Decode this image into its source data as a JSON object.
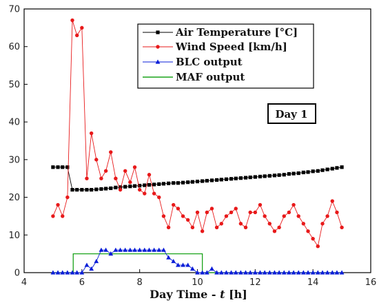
{
  "chart_data": {
    "type": "line",
    "xlabel_prefix": "Day Time - ",
    "xlabel_var": "t",
    "xlabel_suffix": " [h]",
    "ylabel": "",
    "xlim": [
      4,
      16
    ],
    "ylim": [
      0,
      70
    ],
    "xticks": [
      4,
      6,
      8,
      10,
      12,
      14,
      16
    ],
    "yticks": [
      0,
      10,
      20,
      30,
      40,
      50,
      60,
      70
    ],
    "annotation": "Day 1",
    "legend_position": "top-right",
    "series": [
      {
        "name": "Air Temperature [°C]",
        "color": "#000000",
        "marker": "square",
        "x": [
          5.0,
          5.17,
          5.33,
          5.5,
          5.67,
          5.83,
          6.0,
          6.17,
          6.33,
          6.5,
          6.67,
          6.83,
          7.0,
          7.17,
          7.33,
          7.5,
          7.67,
          7.83,
          8.0,
          8.17,
          8.33,
          8.5,
          8.67,
          8.83,
          9.0,
          9.17,
          9.33,
          9.5,
          9.67,
          9.83,
          10.0,
          10.17,
          10.33,
          10.5,
          10.67,
          10.83,
          11.0,
          11.17,
          11.33,
          11.5,
          11.67,
          11.83,
          12.0,
          12.17,
          12.33,
          12.5,
          12.67,
          12.83,
          13.0,
          13.17,
          13.33,
          13.5,
          13.67,
          13.83,
          14.0,
          14.17,
          14.33,
          14.5,
          14.67,
          14.83,
          15.0
        ],
        "y": [
          28,
          28,
          28,
          28,
          22,
          22,
          22,
          22,
          22,
          22.1,
          22.2,
          22.3,
          22.4,
          22.6,
          22.7,
          22.8,
          22.9,
          23.0,
          23.1,
          23.2,
          23.3,
          23.4,
          23.5,
          23.6,
          23.7,
          23.8,
          23.8,
          23.9,
          24.0,
          24.1,
          24.2,
          24.3,
          24.4,
          24.5,
          24.6,
          24.7,
          24.8,
          24.9,
          25.0,
          25.1,
          25.2,
          25.3,
          25.4,
          25.5,
          25.6,
          25.7,
          25.8,
          25.9,
          26.0,
          26.2,
          26.3,
          26.4,
          26.6,
          26.7,
          26.9,
          27.0,
          27.2,
          27.4,
          27.6,
          27.8,
          28.0
        ]
      },
      {
        "name": "Wind Speed [km/h]",
        "color": "#e8191a",
        "marker": "circle",
        "x": [
          5.0,
          5.17,
          5.33,
          5.5,
          5.67,
          5.83,
          6.0,
          6.17,
          6.33,
          6.5,
          6.67,
          6.83,
          7.0,
          7.17,
          7.33,
          7.5,
          7.67,
          7.83,
          8.0,
          8.17,
          8.33,
          8.5,
          8.67,
          8.83,
          9.0,
          9.17,
          9.33,
          9.5,
          9.67,
          9.83,
          10.0,
          10.17,
          10.33,
          10.5,
          10.67,
          10.83,
          11.0,
          11.17,
          11.33,
          11.5,
          11.67,
          11.83,
          12.0,
          12.17,
          12.33,
          12.5,
          12.67,
          12.83,
          13.0,
          13.17,
          13.33,
          13.5,
          13.67,
          13.83,
          14.0,
          14.17,
          14.33,
          14.5,
          14.67,
          14.83,
          15.0
        ],
        "y": [
          15,
          18,
          15,
          20,
          67,
          63,
          65,
          25,
          37,
          30,
          25,
          27,
          32,
          25,
          22,
          27,
          24,
          28,
          22,
          21,
          26,
          21,
          20,
          15,
          12,
          18,
          17,
          15,
          14,
          12,
          16,
          11,
          16,
          17,
          12,
          13,
          15,
          16,
          17,
          13,
          12,
          16,
          16,
          18,
          15,
          13,
          11,
          12,
          15,
          16,
          18,
          15,
          13,
          11,
          9,
          7,
          13,
          15,
          19,
          16,
          12
        ]
      },
      {
        "name": "BLC output",
        "color": "#0a1ed8",
        "marker": "triangle",
        "x": [
          5.0,
          5.17,
          5.33,
          5.5,
          5.67,
          5.83,
          6.0,
          6.17,
          6.33,
          6.5,
          6.67,
          6.83,
          7.0,
          7.17,
          7.33,
          7.5,
          7.67,
          7.83,
          8.0,
          8.17,
          8.33,
          8.5,
          8.67,
          8.83,
          9.0,
          9.17,
          9.33,
          9.5,
          9.67,
          9.83,
          10.0,
          10.17,
          10.33,
          10.5,
          10.67,
          10.83,
          11.0,
          11.17,
          11.33,
          11.5,
          11.67,
          11.83,
          12.0,
          12.17,
          12.33,
          12.5,
          12.67,
          12.83,
          13.0,
          13.17,
          13.33,
          13.5,
          13.67,
          13.83,
          14.0,
          14.17,
          14.33,
          14.5,
          14.67,
          14.83,
          15.0
        ],
        "y": [
          0,
          0,
          0,
          0,
          0,
          0,
          0,
          2,
          1,
          3,
          6,
          6,
          5,
          6,
          6,
          6,
          6,
          6,
          6,
          6,
          6,
          6,
          6,
          6,
          4,
          3,
          2,
          2,
          2,
          1,
          0,
          0,
          0,
          1,
          0,
          0,
          0,
          0,
          0,
          0,
          0,
          0,
          0,
          0,
          0,
          0,
          0,
          0,
          0,
          0,
          0,
          0,
          0,
          0,
          0,
          0,
          0,
          0,
          0,
          0,
          0
        ]
      },
      {
        "name": "MAF output",
        "color": "#1aa31a",
        "marker": "none",
        "x": [
          5.0,
          5.7,
          5.7,
          10.17,
          10.17,
          15.0
        ],
        "y": [
          0,
          0,
          5,
          5,
          0,
          0
        ]
      }
    ]
  }
}
